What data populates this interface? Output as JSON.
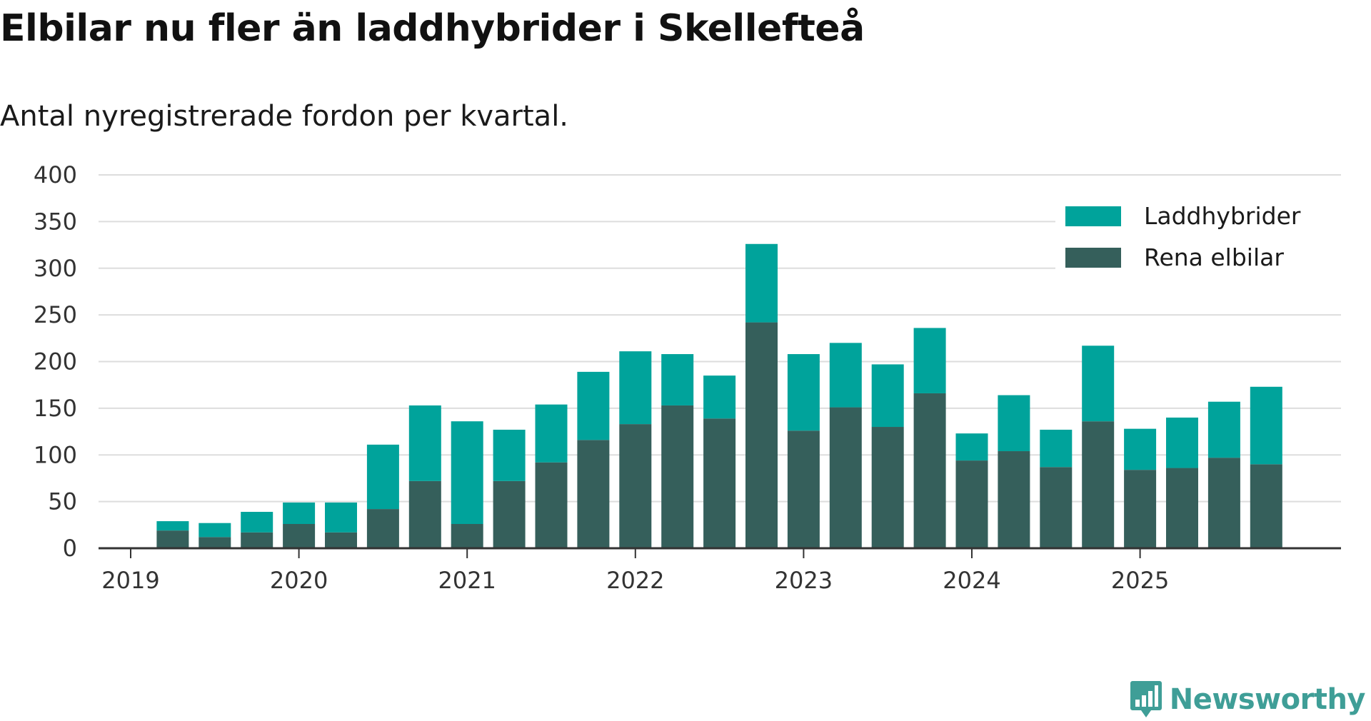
{
  "title": "Elbilar nu fler än laddhybrider i Skellefteå",
  "subtitle": "Antal nyregistrerade fordon per kvartal.",
  "brand": {
    "name": "Newsworthy",
    "icon": "newsworthy-logo-icon",
    "color": "#3f9e97"
  },
  "colors": {
    "Laddhybrider": "#00a39b",
    "Rena elbilar": "#355f5b",
    "grid": "#dddddd",
    "axis": "#333333"
  },
  "chart_data": {
    "type": "bar",
    "stacked": true,
    "title": "Elbilar nu fler än laddhybrider i Skellefteå",
    "subtitle": "Antal nyregistrerade fordon per kvartal.",
    "xlabel": "",
    "ylabel": "",
    "ylim": [
      0,
      400
    ],
    "yticks": [
      0,
      50,
      100,
      150,
      200,
      250,
      300,
      350,
      400
    ],
    "grid": true,
    "legend_position": "top-right",
    "x_ticks": [
      "2019",
      "2020",
      "2021",
      "2022",
      "2023",
      "2024",
      "2025"
    ],
    "categories": [
      "2019 Q1",
      "2019 Q2",
      "2019 Q3",
      "2019 Q4",
      "2020 Q1",
      "2020 Q2",
      "2020 Q3",
      "2020 Q4",
      "2021 Q1",
      "2021 Q2",
      "2021 Q3",
      "2021 Q4",
      "2022 Q1",
      "2022 Q2",
      "2022 Q3",
      "2022 Q4",
      "2023 Q1",
      "2023 Q2",
      "2023 Q3",
      "2023 Q4",
      "2024 Q1",
      "2024 Q2",
      "2024 Q3",
      "2024 Q4",
      "2025 Q1",
      "2025 Q2",
      "2025 Q3",
      "2025 Q4"
    ],
    "series": [
      {
        "name": "Rena elbilar",
        "values": [
          0,
          19,
          12,
          17,
          26,
          17,
          42,
          72,
          26,
          72,
          92,
          116,
          133,
          153,
          139,
          242,
          126,
          151,
          130,
          166,
          94,
          104,
          87,
          136,
          84,
          86,
          97,
          90
        ]
      },
      {
        "name": "Laddhybrider",
        "values": [
          0,
          10,
          15,
          22,
          23,
          32,
          69,
          81,
          110,
          55,
          62,
          73,
          78,
          55,
          46,
          84,
          82,
          69,
          67,
          70,
          29,
          60,
          40,
          81,
          44,
          54,
          60,
          83
        ]
      }
    ]
  }
}
